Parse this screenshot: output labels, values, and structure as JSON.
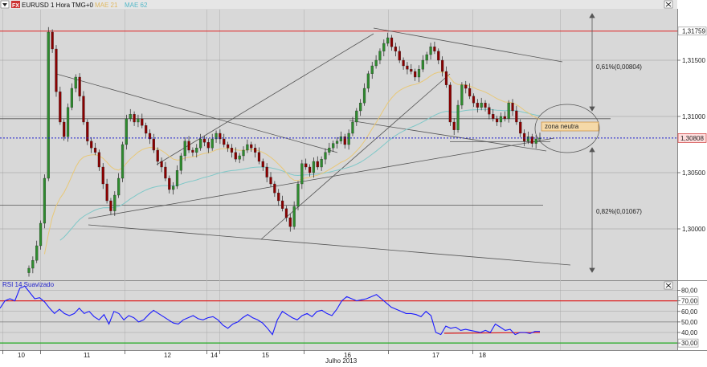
{
  "header": {
    "symbol_label": "EURUSD 1 Hora TMG+0",
    "ma1_label": "MAE 21",
    "ma2_label": "MAE 62",
    "rsi_label": "RSI 14 Suavizado"
  },
  "colors": {
    "background": "#d8d8d8",
    "bull_candle": "#2e8b2e",
    "bear_candle": "#8b0000",
    "ma1": "#e8c878",
    "ma2": "#7fc8c8",
    "rsi_line": "#1a1aff",
    "red_level": "#dd2222",
    "green_level": "#22aa22",
    "current_price_line": "#1a1acc",
    "current_price_box": "#ffdddd",
    "annotation_box": "#f5d9a8"
  },
  "chart_data": [
    {
      "type": "candlestick",
      "title": "EURUSD 1 Hora TMG+0",
      "y_ticks": [
        "1,31759",
        "1,31500",
        "1,31000",
        "1,30500",
        "1,30000"
      ],
      "y_tick_values": [
        1.31759,
        1.315,
        1.31,
        1.305,
        1.3
      ],
      "current_price_label": "1,30808",
      "current_price": 1.30808,
      "ylim": [
        1.2955,
        1.3195
      ],
      "x_ticks": [
        "10",
        "11",
        "12",
        "14",
        "15",
        "16",
        "17",
        "18"
      ],
      "x_axis_title": "Julho 2013",
      "series": [
        {
          "name": "MAE 21"
        },
        {
          "name": "MAE 62"
        }
      ],
      "closes": [
        1.2965,
        1.2972,
        1.2985,
        1.3005,
        1.3045,
        1.3175,
        1.316,
        1.3122,
        1.3095,
        1.3082,
        1.3108,
        1.3125,
        1.3135,
        1.3118,
        1.3095,
        1.3078,
        1.3072,
        1.3068,
        1.3055,
        1.304,
        1.3025,
        1.3016,
        1.303,
        1.3045,
        1.3075,
        1.3098,
        1.3102,
        1.3095,
        1.3098,
        1.3092,
        1.3085,
        1.308,
        1.307,
        1.306,
        1.3055,
        1.3045,
        1.3035,
        1.3038,
        1.3052,
        1.3065,
        1.3078,
        1.307,
        1.3068,
        1.3072,
        1.308,
        1.3077,
        1.3072,
        1.308,
        1.3085,
        1.308,
        1.3075,
        1.3072,
        1.3068,
        1.3062,
        1.3065,
        1.307,
        1.3075,
        1.3072,
        1.3068,
        1.306,
        1.3055,
        1.3046,
        1.304,
        1.3032,
        1.3025,
        1.3018,
        1.301,
        1.3002,
        1.302,
        1.304,
        1.3058,
        1.3055,
        1.305,
        1.306,
        1.3055,
        1.3062,
        1.3068,
        1.3072,
        1.3076,
        1.3078,
        1.3082,
        1.3075,
        1.3085,
        1.3095,
        1.3105,
        1.3112,
        1.3125,
        1.3138,
        1.3145,
        1.315,
        1.3158,
        1.3165,
        1.317,
        1.3162,
        1.3158,
        1.315,
        1.3145,
        1.3142,
        1.314,
        1.3135,
        1.3142,
        1.315,
        1.3155,
        1.3162,
        1.3158,
        1.315,
        1.314,
        1.3128,
        1.3095,
        1.3088,
        1.311,
        1.3128,
        1.3125,
        1.3118,
        1.3112,
        1.3108,
        1.3112,
        1.3108,
        1.3102,
        1.3098,
        1.3095,
        1.31,
        1.3098,
        1.3112,
        1.3105,
        1.3095,
        1.3085,
        1.3078,
        1.3082,
        1.3076,
        1.308,
        1.3081
      ]
    },
    {
      "type": "line",
      "title": "RSI 14 Suavizado",
      "y_ticks": [
        "80,00",
        "70,00",
        "60,00",
        "50,00",
        "40,00",
        "30,00"
      ],
      "y_tick_values": [
        80,
        70,
        60,
        50,
        40,
        30
      ],
      "ylim": [
        24,
        88
      ],
      "overbought": 70,
      "oversold": 30,
      "values": [
        63,
        70,
        72,
        70,
        82,
        84,
        78,
        72,
        73,
        69,
        63,
        58,
        62,
        58,
        56,
        58,
        63,
        58,
        60,
        55,
        52,
        57,
        48,
        60,
        58,
        52,
        56,
        54,
        50,
        52,
        57,
        61,
        58,
        55,
        52,
        49,
        48,
        52,
        54,
        56,
        53,
        52,
        54,
        55,
        52,
        47,
        44,
        48,
        50,
        54,
        57,
        54,
        52,
        49,
        44,
        38,
        52,
        60,
        57,
        54,
        52,
        56,
        58,
        55,
        60,
        61,
        58,
        56,
        62,
        70,
        74,
        72,
        70,
        71,
        72,
        74,
        76,
        72,
        68,
        64,
        62,
        60,
        58,
        58,
        57,
        55,
        60,
        56,
        40,
        38,
        46,
        44,
        45,
        42,
        43,
        42,
        41,
        40,
        42,
        40,
        48,
        45,
        42,
        43,
        38,
        40,
        40,
        39,
        41,
        41
      ]
    }
  ],
  "annotations": {
    "upper_pct": "0,61%(0,00804)",
    "lower_pct": "0,82%(0,01067)",
    "zone_label": "zona neutra"
  }
}
